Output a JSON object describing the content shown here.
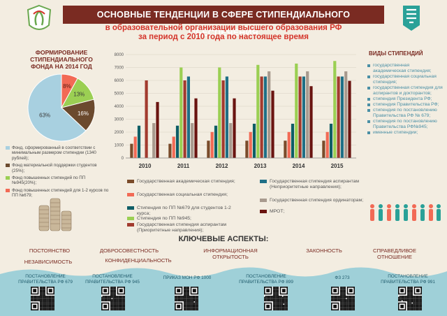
{
  "header": {
    "title": "ОСНОВНЫЕ ТЕНДЕНЦИИ В СФЕРЕ СТИПЕНДИАЛЬНОГО ОБЕСПЕЧЕНИЯ",
    "subtitle_line1": "в образовательной организации высшего образования РФ",
    "subtitle_line2": "за период с 2010 года по настоящее время"
  },
  "pie": {
    "title": "ФОРМИРОВАНИЕ СТИПЕНДИАЛЬНОГО ФОНДА НА 2014 ГОД",
    "legend": [
      "Фонд, сформированный в соответствии с минимальным размером стипендии (1340 рублей);",
      "Фонд материальной поддержки студентов (25%);",
      "Фонд повышенных стипендий по ПП №945(20%);",
      "Фонд повышенных стипендий для 1-2 курсов по ПП №679;"
    ]
  },
  "chart_data": [
    {
      "type": "pie",
      "labels": [
        "63%",
        "16%",
        "13%",
        "8%"
      ],
      "values": [
        63,
        16,
        13,
        8
      ],
      "colors": [
        "#a8d0e0",
        "#6b4a2e",
        "#9bcf53",
        "#f26a55"
      ]
    },
    {
      "type": "bar",
      "categories": [
        "2010",
        "2011",
        "2012",
        "2013",
        "2014",
        "2015"
      ],
      "ylim": [
        0,
        8000
      ],
      "yticks": [
        "0",
        "1000",
        "2000",
        "3000",
        "4000",
        "5000",
        "6000",
        "7000",
        "8000"
      ],
      "series": [
        {
          "name": "Государственная академическая стипендия;",
          "color": "#7a4b2a",
          "values": [
            1100,
            1100,
            1340,
            1340,
            1340,
            1340
          ]
        },
        {
          "name": "Государственная социальная стипендия;",
          "color": "#f26a55",
          "values": [
            1650,
            1650,
            2010,
            2010,
            2010,
            2010
          ]
        },
        {
          "name": "Стипендия по ПП №679 для студентов 1-2 курса;",
          "color": "#0e5e66",
          "values": [
            2500,
            2500,
            2500,
            2650,
            2650,
            2650
          ]
        },
        {
          "name": "Стипендия по ПП №945;",
          "color": "#9bcf53",
          "values": [
            null,
            7000,
            7000,
            7200,
            7300,
            7500
          ]
        },
        {
          "name": "Государственная стипендия аспирантам (Приоритетные направления);",
          "color": "#a23a2e",
          "values": [
            6000,
            6000,
            6000,
            6300,
            6300,
            6300
          ]
        },
        {
          "name": "Государственная стипендия аспирантам (Неприоритетные направления);",
          "color": "#1f6f86",
          "values": [
            null,
            6300,
            6300,
            6300,
            6300,
            6300
          ]
        },
        {
          "name": "Государственная стипендия ординаторам;",
          "color": "#a89a8e",
          "values": [
            2700,
            2700,
            2700,
            6700,
            6700,
            6700
          ]
        },
        {
          "name": "МРОТ;",
          "color": "#6a1410",
          "values": [
            4330,
            4611,
            4611,
            5205,
            5554,
            5965
          ]
        }
      ]
    }
  ],
  "types": {
    "title": "ВИДЫ СТИПЕНДИЙ",
    "items": [
      "государственная академическая стипендия;",
      "государственная социальная стипендия;",
      "государственная стипендия для аспирантов и докторантов;",
      "стипендия Президента РФ;",
      "стипендия Правительства РФ;",
      "стипендия по постановлению Правительства РФ № 679;",
      "стипендия по постановлению Правительства РФ№945;",
      "именные стипендии;"
    ]
  },
  "key": {
    "title": "КЛЮЧЕВЫЕ АСПЕКТЫ:",
    "items": [
      "ПОСТОЯНСТВО",
      "НЕЗАВИСИМОСТЬ",
      "ДОБРОСОВЕСТНОСТЬ",
      "КОНФИДЕНЦИАЛЬНОСТЬ",
      "ИНФОРМАЦИОННАЯ ОТКРЫТОСТЬ",
      "ЗАКОННОСТЬ",
      "СПРАВЕДЛИВОЕ ОТНОШЕНИЕ"
    ]
  },
  "docs": [
    "ПОСТАНОВЛЕНИЕ ПРАВИТЕЛЬСТВА РФ 679",
    "ПОСТАНОВЛЕНИЕ ПРАВИТЕЛЬСТВА РФ 945",
    "ПРИКАЗ МОН РФ 1000",
    "ПОСТАНОВЛЕНИЕ ПРАВИТЕЛЬСТВА РФ 899",
    "ФЗ 273",
    "ПОСТАНОВЛЕНИЕ ПРАВИТЕЛЬСТВА РФ 991"
  ]
}
